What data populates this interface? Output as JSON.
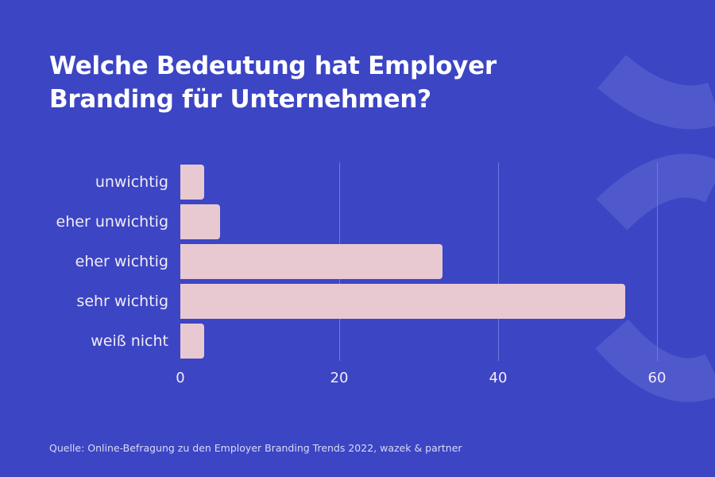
{
  "title": "Welche Bedeutung hat Employer Branding für Unternehmen?",
  "source": "Quelle: Online-Befragung zu den Employer Branding Trends 2022, wazek & partner",
  "colors": {
    "background": "#3c45c4",
    "bar": "#e8c9d2",
    "grid": "#6f78dc",
    "decoration": "#5059cc"
  },
  "chart_data": {
    "type": "bar",
    "orientation": "horizontal",
    "title": "Welche Bedeutung hat Employer Branding für Unternehmen?",
    "categories": [
      "unwichtig",
      "eher unwichtig",
      "eher wichtig",
      "sehr wichtig",
      "weiß nicht"
    ],
    "values": [
      3,
      5,
      33,
      56,
      3
    ],
    "xlabel": "",
    "ylabel": "",
    "xlim": [
      0,
      60
    ],
    "xticks": [
      "0",
      "20",
      "40",
      "60"
    ],
    "grid": true,
    "legend": null
  }
}
